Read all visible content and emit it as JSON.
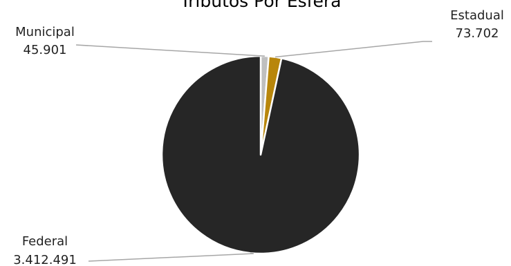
{
  "chart_data": {
    "type": "pie",
    "title": "Tributos Por Esfera",
    "slices": [
      {
        "label": "Municipal",
        "value_label": "45.901",
        "value": 45901,
        "color": "#bfbfbf"
      },
      {
        "label": "Estadual",
        "value_label": "73.702",
        "value": 73702,
        "color": "#b8860b"
      },
      {
        "label": "Federal",
        "value_label": "3.412.491",
        "value": 3412491,
        "color": "#262626"
      }
    ],
    "start_angle_deg": 0,
    "slice_separator_color": "#ffffff",
    "leader_line_color": "#a6a6a6",
    "legend": "none"
  }
}
